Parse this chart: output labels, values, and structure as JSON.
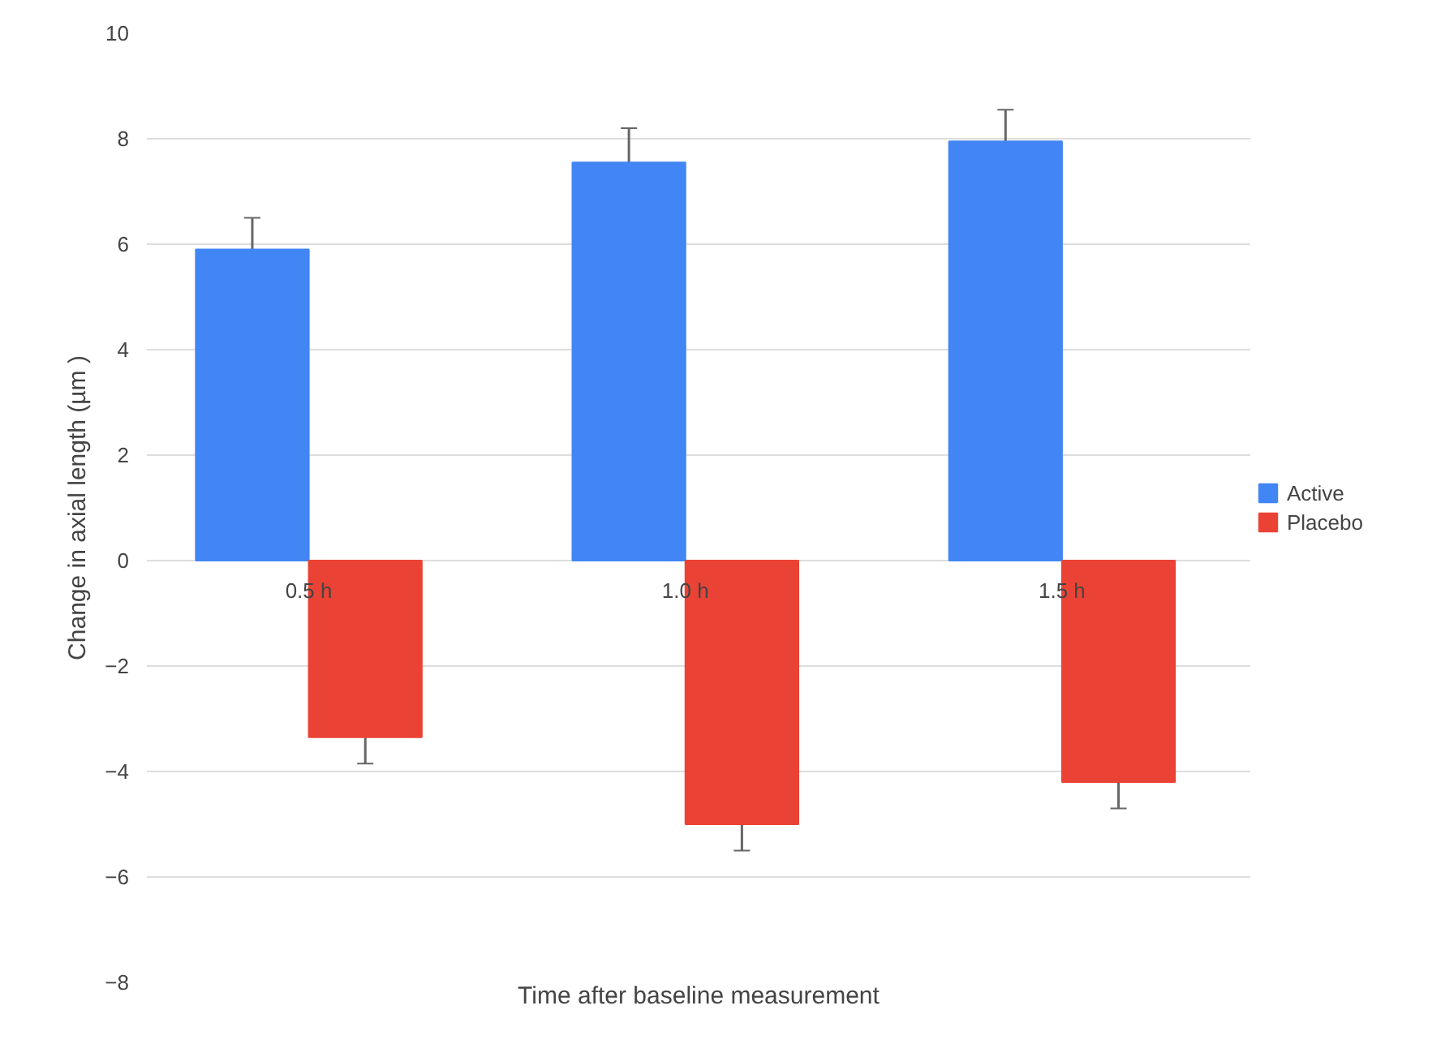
{
  "chart_data": {
    "type": "bar",
    "xlabel": "Time after baseline measurement",
    "ylabel": "Change in axial length (µm )",
    "categories": [
      "0.5 h",
      "1.0 h",
      "1.5 h"
    ],
    "series": [
      {
        "name": "Active",
        "color": "#4285f4",
        "values": [
          5.9,
          7.55,
          7.95
        ],
        "errors": [
          0.6,
          0.65,
          0.6
        ]
      },
      {
        "name": "Placebo",
        "color": "#ea4335",
        "values": [
          -3.35,
          -5.0,
          -4.2
        ],
        "errors": [
          0.5,
          0.5,
          0.5
        ]
      }
    ],
    "ylim": [
      -8,
      10
    ],
    "yticks": [
      -8,
      -6,
      -4,
      -2,
      0,
      2,
      4,
      6,
      8,
      10
    ],
    "grid": "y",
    "legend": "right"
  }
}
